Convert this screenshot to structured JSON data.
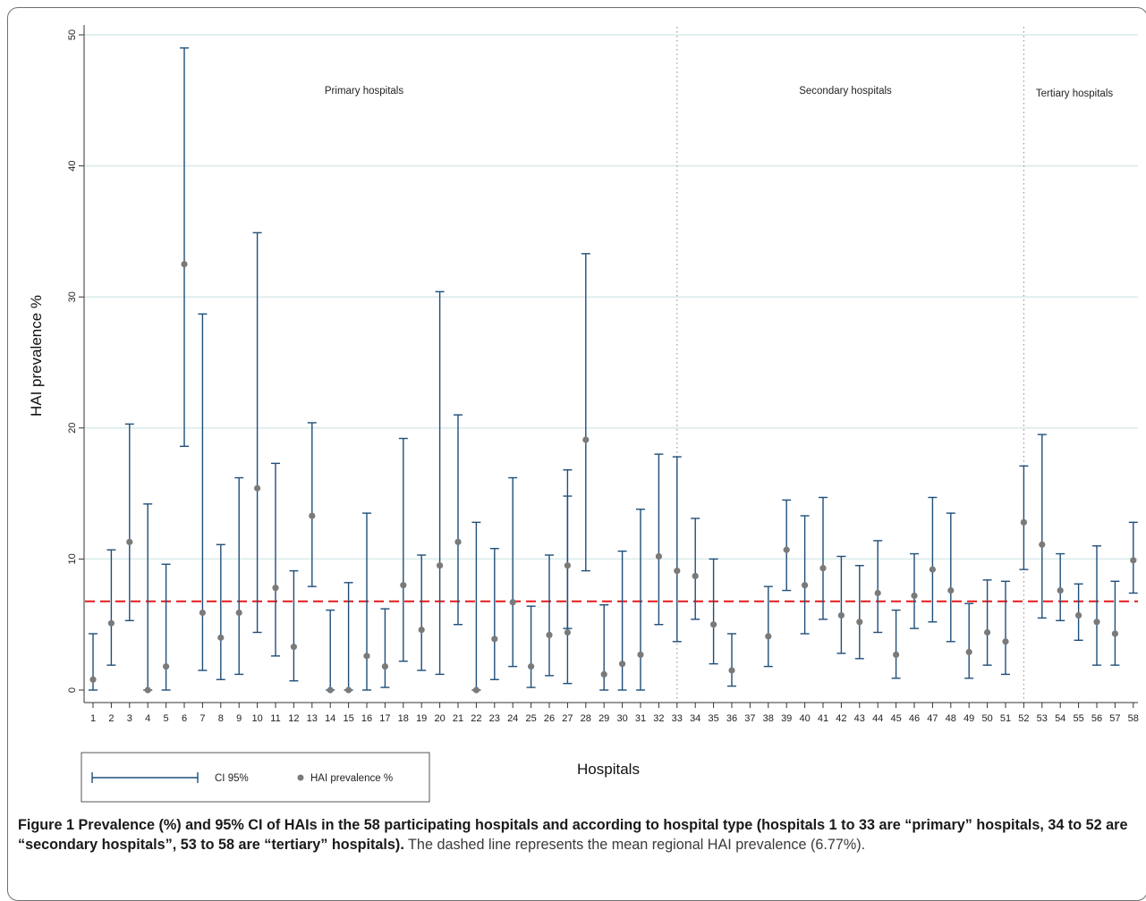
{
  "chart_data": {
    "type": "errorbar",
    "xlabel": "Hospitals",
    "ylabel": "HAI prevalence %",
    "ylim": [
      0,
      50
    ],
    "yticks": [
      0,
      10,
      20,
      30,
      40,
      50
    ],
    "grid": true,
    "groups": [
      {
        "label": "Primary hospitals"
      },
      {
        "label": "Secondary hospitals"
      },
      {
        "label": "Tertiary hospitals"
      }
    ],
    "mean_line": {
      "value": 6.77,
      "color": "#e41a1c"
    },
    "legend": {
      "ci_label": "CI 95%",
      "point_label": "HAI prevalence %",
      "position": "bottom-left"
    },
    "series_colors": {
      "ci": "#1f4e79",
      "point": "#7a7a7a"
    },
    "x": [
      1,
      2,
      3,
      4,
      5,
      6,
      7,
      8,
      9,
      10,
      11,
      12,
      13,
      14,
      15,
      16,
      17,
      18,
      19,
      20,
      21,
      22,
      23,
      24,
      25,
      26,
      27,
      28,
      29,
      30,
      31,
      32,
      33,
      34,
      35,
      36,
      37,
      38,
      39,
      40,
      41,
      42,
      43,
      44,
      45,
      46,
      47,
      48,
      49,
      50,
      51,
      52,
      53,
      54,
      55,
      56,
      57,
      58
    ],
    "values": [
      0.8,
      5.1,
      11.3,
      0,
      1.8,
      32.5,
      5.9,
      4.0,
      5.9,
      15.4,
      7.8,
      3.3,
      13.3,
      0,
      0,
      2.6,
      1.8,
      8.0,
      4.6,
      9.5,
      11.3,
      0,
      3.9,
      6.7,
      1.8,
      4.2,
      9.5,
      19.1,
      1.2,
      2.0,
      2.7,
      10.2,
      9.1,
      8.7,
      5.0,
      1.5,
      null,
      4.1,
      10.7,
      8.0,
      9.3,
      5.7,
      5.2,
      7.4,
      2.7,
      7.2,
      9.2,
      7.6,
      2.9,
      4.4,
      3.7,
      12.8,
      11.1,
      7.6,
      5.7,
      5.2,
      4.3,
      9.9
    ],
    "ci_lower": [
      0,
      1.9,
      5.3,
      0,
      0,
      18.6,
      1.5,
      0.8,
      1.2,
      4.4,
      2.6,
      0.7,
      7.9,
      0,
      0,
      0,
      0.2,
      2.2,
      1.5,
      1.2,
      5.0,
      0,
      0.8,
      1.8,
      0.2,
      1.1,
      0.5,
      9.1,
      0,
      0,
      0,
      5.0,
      3.7,
      5.4,
      2.0,
      0.3,
      null,
      1.8,
      7.6,
      4.3,
      5.4,
      2.8,
      2.4,
      4.4,
      0.9,
      4.7,
      5.2,
      3.7,
      0.9,
      1.9,
      1.2,
      9.2,
      5.5,
      5.3,
      3.8,
      1.9,
      1.9,
      7.4
    ],
    "ci_upper": [
      4.3,
      10.7,
      20.3,
      14.2,
      9.6,
      49.0,
      28.7,
      11.1,
      16.2,
      34.9,
      17.3,
      9.1,
      20.4,
      6.1,
      8.2,
      13.5,
      6.2,
      19.2,
      10.3,
      30.4,
      21.0,
      12.8,
      10.8,
      16.2,
      6.4,
      10.3,
      16.8,
      33.3,
      6.5,
      10.6,
      13.8,
      18.0,
      17.8,
      13.1,
      10.0,
      4.3,
      null,
      7.9,
      14.5,
      13.3,
      14.7,
      10.2,
      9.5,
      11.4,
      6.1,
      10.4,
      14.7,
      13.5,
      6.6,
      8.4,
      8.3,
      17.1,
      19.5,
      10.4,
      8.1,
      11.0,
      8.3,
      12.8
    ],
    "extra_ci": [
      {
        "x": 27,
        "lower": 4.7,
        "upper": 14.8,
        "point": 4.4
      }
    ]
  },
  "caption": {
    "label": "Figure 1",
    "title": "Prevalence (%) and 95% CI of HAIs in the 58 participating hospitals and according to hospital type (hospitals 1 to 33 are “primary” hospitals, 34 to 52 are “secondary hospitals”, 53 to 58 are “tertiary” hospitals).",
    "text": "The dashed line represents the mean regional HAI prevalence (6.77%)."
  }
}
